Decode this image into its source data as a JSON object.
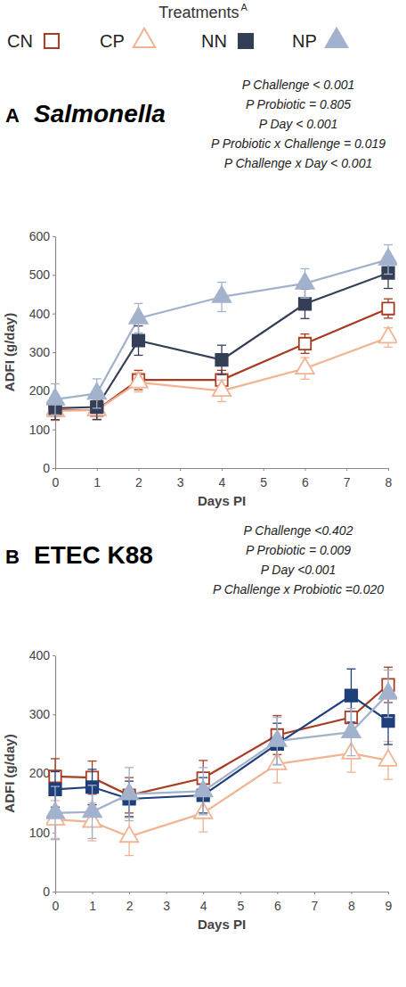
{
  "treatments": {
    "title": "Treatments",
    "superscript": "A"
  },
  "chart_data": [
    {
      "type": "line",
      "panel_label": "A",
      "title": "Salmonella",
      "annotations": [
        "P Challenge < 0.001",
        "P Probiotic = 0.805",
        "P Day < 0.001",
        "P Probiotic x Challenge = 0.019",
        "P Challenge x Day < 0.001"
      ],
      "x_label": "Days PI",
      "y_label": "ADFI (g/day)",
      "x": [
        0,
        1,
        2,
        4,
        6,
        8
      ],
      "xlim": [
        0,
        8
      ],
      "xticks": [
        0,
        1,
        2,
        3,
        4,
        5,
        6,
        7,
        8
      ],
      "ylim": [
        0,
        600
      ],
      "yticks": [
        0,
        100,
        200,
        300,
        400,
        500,
        600
      ],
      "grid": false,
      "series": [
        {
          "name": "CN",
          "color": "#a83c22",
          "marker": "square-open",
          "values": [
            150,
            150,
            228,
            228,
            322,
            413
          ],
          "errors": [
            25,
            25,
            25,
            25,
            25,
            25
          ]
        },
        {
          "name": "CP",
          "color": "#f2b393",
          "marker": "triangle-open",
          "values": [
            148,
            150,
            222,
            200,
            258,
            338
          ],
          "errors": [
            25,
            25,
            25,
            28,
            28,
            25
          ]
        },
        {
          "name": "NN",
          "color": "#343f57",
          "marker": "square",
          "values": [
            155,
            158,
            330,
            280,
            425,
            505
          ],
          "errors": [
            30,
            32,
            38,
            38,
            38,
            40
          ]
        },
        {
          "name": "NP",
          "color": "#a3b2cc",
          "marker": "triangle",
          "values": [
            178,
            193,
            388,
            443,
            478,
            540
          ],
          "errors": [
            40,
            38,
            38,
            38,
            38,
            38
          ]
        }
      ]
    },
    {
      "type": "line",
      "panel_label": "B",
      "title": "ETEC K88",
      "annotations": [
        "P Challenge <0.402",
        "P Probiotic = 0.009",
        "P Day <0.001",
        "P Challenge x Probiotic =0.020"
      ],
      "x_label": "Days PI",
      "y_label": "ADFI (g/day)",
      "x": [
        0,
        1,
        2,
        4,
        6,
        8,
        9
      ],
      "xlim": [
        0,
        9
      ],
      "xticks": [
        0,
        1,
        2,
        3,
        4,
        5,
        6,
        7,
        8,
        9
      ],
      "ylim": [
        0,
        400
      ],
      "yticks": [
        0,
        100,
        200,
        300,
        400
      ],
      "grid": false,
      "series": [
        {
          "name": "CN",
          "color": "#a83c22",
          "marker": "square-open",
          "values": [
            195,
            193,
            163,
            192,
            265,
            295,
            350
          ],
          "errors": [
            30,
            28,
            30,
            30,
            33,
            33,
            30
          ]
        },
        {
          "name": "CP",
          "color": "#f2b393",
          "marker": "triangle-open",
          "values": [
            122,
            118,
            93,
            133,
            216,
            234,
            222
          ],
          "errors": [
            32,
            32,
            32,
            32,
            32,
            32,
            32
          ]
        },
        {
          "name": "NN",
          "color": "#1f3f7a",
          "marker": "square",
          "values": [
            173,
            177,
            157,
            163,
            250,
            332,
            289
          ],
          "errors": [
            30,
            30,
            30,
            30,
            35,
            45,
            40
          ]
        },
        {
          "name": "NP",
          "color": "#a3b2cc",
          "marker": "triangle",
          "values": [
            133,
            135,
            165,
            170,
            255,
            270,
            335
          ],
          "errors": [
            45,
            45,
            45,
            40,
            40,
            40,
            40
          ]
        }
      ]
    }
  ]
}
